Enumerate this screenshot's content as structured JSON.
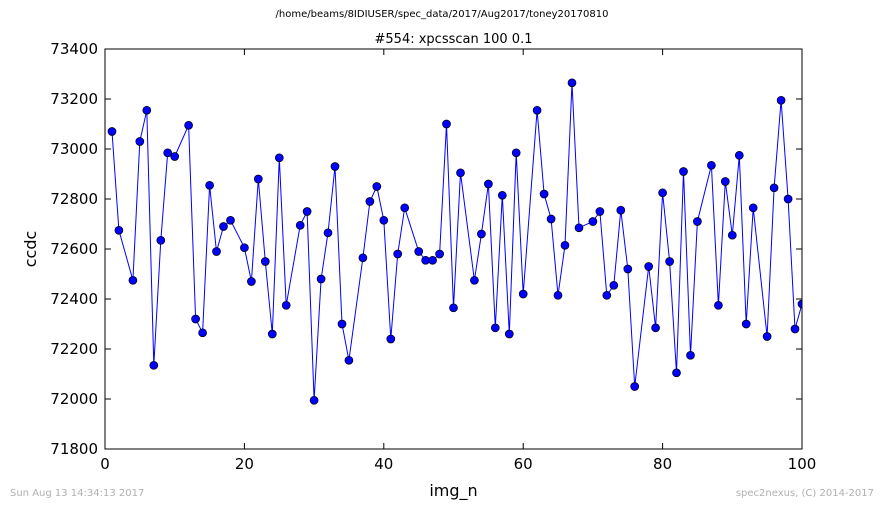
{
  "header": {
    "suptitle": "/home/beams/8IDIUSER/spec_data/2017/Aug2017/toney20170810"
  },
  "footer": {
    "left": "Sun Aug 13 14:34:13 2017",
    "right": "spec2nexus, (C) 2014-2017"
  },
  "colors": {
    "line": "#0000ff",
    "marker": "#0000ff",
    "footer_text": "#b0b0b0"
  },
  "chart_data": {
    "type": "line",
    "title": "#554: xpcsscan 100 0.1",
    "xlabel": "img_n",
    "ylabel": "ccdc",
    "xlim": [
      0,
      100
    ],
    "ylim": [
      71800,
      73400
    ],
    "xticks": [
      0,
      20,
      40,
      60,
      80,
      100
    ],
    "yticks": [
      71800,
      72000,
      72200,
      72400,
      72600,
      72800,
      73000,
      73200,
      73400
    ],
    "grid": false,
    "series": [
      {
        "x": [
          1,
          2,
          4,
          5,
          6,
          7,
          8,
          9,
          10,
          12,
          13,
          14,
          15,
          16,
          17,
          18,
          20,
          21,
          22,
          23,
          24,
          25,
          26,
          28,
          29,
          30,
          31,
          32,
          33,
          34,
          35,
          37,
          38,
          39,
          40,
          41,
          42,
          43,
          45,
          46,
          47,
          48,
          49,
          50,
          51,
          53,
          54,
          55,
          56,
          57,
          58,
          59,
          60,
          62,
          63,
          64,
          65,
          66,
          67,
          68,
          70,
          71,
          72,
          73,
          74,
          75,
          76,
          78,
          79,
          80,
          81,
          82,
          83,
          84,
          85,
          87,
          88,
          89,
          90,
          91,
          92,
          93,
          95,
          96,
          97,
          98,
          99,
          100
        ],
        "y": [
          73070,
          72675,
          72475,
          73030,
          73155,
          72135,
          72635,
          72985,
          72970,
          73095,
          72320,
          72265,
          72855,
          72590,
          72690,
          72715,
          72605,
          72470,
          72880,
          72550,
          72260,
          72965,
          72375,
          72695,
          72750,
          71995,
          72480,
          72665,
          72930,
          72300,
          72155,
          72565,
          72790,
          72850,
          72715,
          72240,
          72580,
          72765,
          72590,
          72555,
          72555,
          72580,
          73100,
          72365,
          72905,
          72475,
          72660,
          72860,
          72285,
          72815,
          72260,
          72985,
          72420,
          73155,
          72820,
          72720,
          72415,
          72615,
          73265,
          72685,
          72710,
          72750,
          72415,
          72455,
          72755,
          72520,
          72050,
          72530,
          72285,
          72825,
          72550,
          72105,
          72910,
          72175,
          72710,
          72935,
          72375,
          72870,
          72655,
          72975,
          72300,
          72765,
          72250,
          72845,
          73195,
          72800,
          72280,
          72380
        ]
      }
    ]
  }
}
